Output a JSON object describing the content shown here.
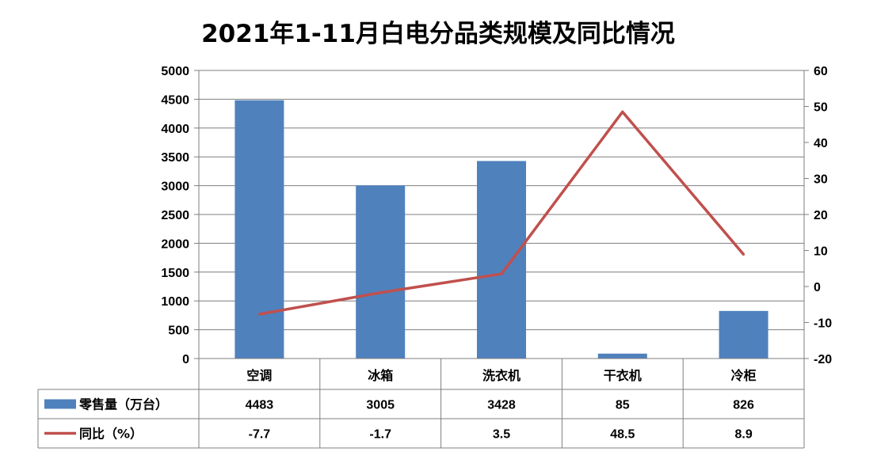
{
  "chart_data": {
    "type": "bar",
    "title": "2021年1-11月白电分品类规模及同比情况",
    "categories": [
      "空调",
      "冰箱",
      "洗衣机",
      "干衣机",
      "冷柜"
    ],
    "series": [
      {
        "name": "零售量（万台）",
        "type": "bar",
        "axis": "left",
        "values": [
          4483,
          3005,
          3428,
          85,
          826
        ],
        "color": "#4F81BD",
        "labels": [
          "4483",
          "3005",
          "3428",
          "85",
          "826"
        ]
      },
      {
        "name": "同比（%）",
        "type": "line",
        "axis": "right",
        "values": [
          -7.7,
          -1.7,
          3.5,
          48.5,
          8.9
        ],
        "color": "#C0504D",
        "labels": [
          "-7.7",
          "-1.7",
          "3.5",
          "48.5",
          "8.9"
        ]
      }
    ],
    "y_left": {
      "min": 0,
      "max": 5000,
      "step": 500,
      "ticks": [
        "0",
        "500",
        "1000",
        "1500",
        "2000",
        "2500",
        "3000",
        "3500",
        "4000",
        "4500",
        "5000"
      ]
    },
    "y_right": {
      "min": -20,
      "max": 60,
      "step": 10,
      "ticks": [
        "-20",
        "-10",
        "0",
        "10",
        "20",
        "30",
        "40",
        "50",
        "60"
      ]
    },
    "grid": true,
    "legend_placement": "data-table"
  }
}
